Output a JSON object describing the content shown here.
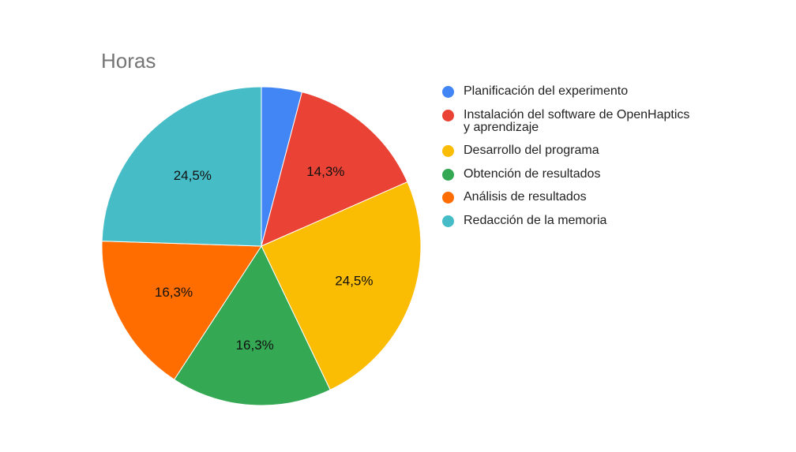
{
  "chart_data": {
    "type": "pie",
    "title": "Horas",
    "legend_position": "right",
    "start_angle_deg": 0,
    "slices": [
      {
        "label": "Planificación del experimento",
        "value": 4.1,
        "display_label": "",
        "color": "#4285F4"
      },
      {
        "label": "Instalación del software de OpenHaptics\ny aprendizaje",
        "value": 14.3,
        "display_label": "14,3%",
        "color": "#EA4335"
      },
      {
        "label": "Desarrollo del programa",
        "value": 24.5,
        "display_label": "24,5%",
        "color": "#FBBC04"
      },
      {
        "label": "Obtención de resultados",
        "value": 16.3,
        "display_label": "16,3%",
        "color": "#34A853"
      },
      {
        "label": "Análisis de resultados",
        "value": 16.3,
        "display_label": "16,3%",
        "color": "#FF6D01"
      },
      {
        "label": "Redacción de la memoria",
        "value": 24.5,
        "display_label": "24,5%",
        "color": "#46BDC6"
      }
    ]
  }
}
